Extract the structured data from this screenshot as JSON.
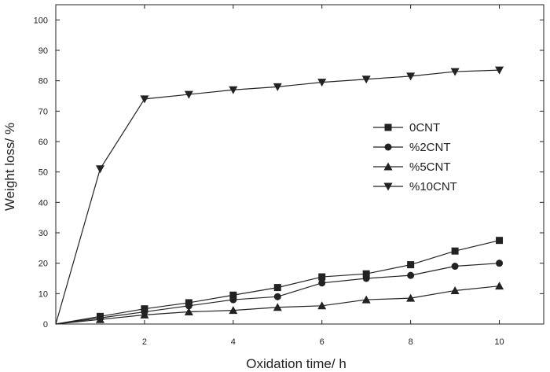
{
  "chart_data": {
    "type": "line",
    "xlabel": "Oxidation time/ h",
    "ylabel": "Weight loss/ %",
    "xlim": [
      0,
      11
    ],
    "ylim": [
      0,
      105
    ],
    "x_ticks": [
      2,
      4,
      6,
      8,
      10
    ],
    "y_ticks": [
      0,
      10,
      20,
      30,
      40,
      50,
      60,
      70,
      80,
      90,
      100
    ],
    "grid": false,
    "legend_position": "right",
    "line_color": "#222222",
    "x": [
      0,
      1,
      2,
      3,
      4,
      5,
      6,
      7,
      8,
      9,
      10
    ],
    "series": [
      {
        "name": "0CNT",
        "marker": "square",
        "values": [
          0,
          2.5,
          5,
          7,
          9.5,
          12,
          15.5,
          16.5,
          19.5,
          24,
          27.5
        ]
      },
      {
        "name": "%2CNT",
        "marker": "circle",
        "values": [
          0,
          2,
          4,
          6,
          8,
          9,
          13.5,
          15,
          16,
          19,
          20
        ]
      },
      {
        "name": "%5CNT",
        "marker": "triangle-up",
        "values": [
          0,
          1.5,
          3,
          4,
          4.5,
          5.5,
          6,
          8,
          8.5,
          11,
          12.5
        ]
      },
      {
        "name": "%10CNT",
        "marker": "triangle-down",
        "values": [
          0,
          51,
          74,
          75.5,
          77,
          78,
          79.5,
          80.5,
          81.5,
          83,
          83.5
        ]
      }
    ]
  }
}
